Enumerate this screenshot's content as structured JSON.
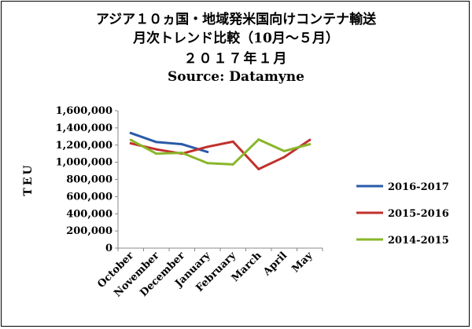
{
  "header": {
    "line1": "アジア１０ヵ国・地域発米国向けコンテナ輸送",
    "line2": "月次トレンド比較（10月～５月）",
    "line3": "２０１７年１月",
    "line4": "Source: Datamyne"
  },
  "chart_data": {
    "type": "line",
    "title": "アジア１０ヵ国・地域発米国向けコンテナ輸送 月次トレンド比較（10月～５月） ２０１７年１月",
    "subtitle": "Source: Datamyne",
    "xlabel": "",
    "ylabel": "TEU",
    "categories": [
      "October",
      "November",
      "December",
      "January",
      "February",
      "March",
      "April",
      "May"
    ],
    "y_ticks": [
      "0",
      "200,000",
      "400,000",
      "600,000",
      "800,000",
      "1,000,000",
      "1,200,000",
      "1,400,000",
      "1,600,000"
    ],
    "ylim": [
      0,
      1600000
    ],
    "grid": false,
    "legend_position": "right",
    "series": [
      {
        "name": "2016-2017",
        "color": "#2a5aa8",
        "values": [
          1340000,
          1235000,
          1210000,
          1120000,
          null,
          null,
          null,
          null
        ]
      },
      {
        "name": "2015-2016",
        "color": "#c0312b",
        "values": [
          1220000,
          1150000,
          1100000,
          1180000,
          1240000,
          920000,
          1060000,
          1260000
        ]
      },
      {
        "name": "2014-2015",
        "color": "#8ab62a",
        "values": [
          1260000,
          1100000,
          1110000,
          990000,
          975000,
          1265000,
          1130000,
          1210000
        ]
      }
    ]
  }
}
